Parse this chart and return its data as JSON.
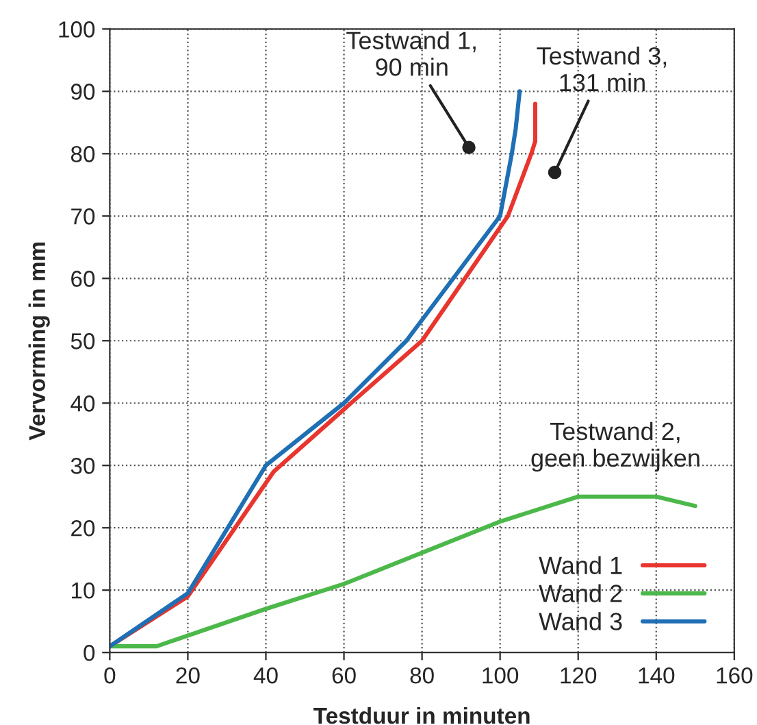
{
  "chart_data": {
    "type": "line",
    "xlabel": "Testduur in minuten",
    "ylabel": "Vervorming in mm",
    "xlim": [
      0,
      160
    ],
    "xticks": [
      0,
      20,
      40,
      60,
      80,
      100,
      120,
      140,
      160
    ],
    "ylim": [
      0,
      100
    ],
    "yticks": [
      0,
      10,
      20,
      30,
      40,
      50,
      60,
      70,
      80,
      90,
      100
    ],
    "grid": true,
    "legend": "bottom right",
    "line_style": "solid",
    "marker": "none",
    "series": [
      {
        "name": "Wand 1",
        "color": "#e8352e",
        "x": [
          0,
          20,
          42,
          60,
          80,
          102,
          108,
          109,
          109
        ],
        "values": [
          1,
          9,
          29,
          39,
          50,
          70,
          80,
          82,
          88
        ]
      },
      {
        "name": "Wand 2",
        "color": "#4cb84a",
        "x": [
          0,
          12,
          40,
          60,
          80,
          100,
          120,
          140,
          150
        ],
        "values": [
          1,
          1,
          7,
          11,
          16,
          21,
          25,
          25,
          23.5
        ]
      },
      {
        "name": "Wand 3",
        "color": "#1f6fb5",
        "x": [
          0,
          20,
          40,
          60,
          76,
          100,
          103,
          104,
          105
        ],
        "values": [
          1,
          9.5,
          30,
          40,
          50,
          70,
          80,
          84,
          90
        ]
      }
    ],
    "annotations": [
      {
        "text": "Testwand 1,\n90 min",
        "x": 92,
        "y": 81
      },
      {
        "text": "Testwand 3,\n131 min",
        "x": 114,
        "y": 77
      },
      "Testwand 2,\ngeen bezwijken"
    ]
  }
}
